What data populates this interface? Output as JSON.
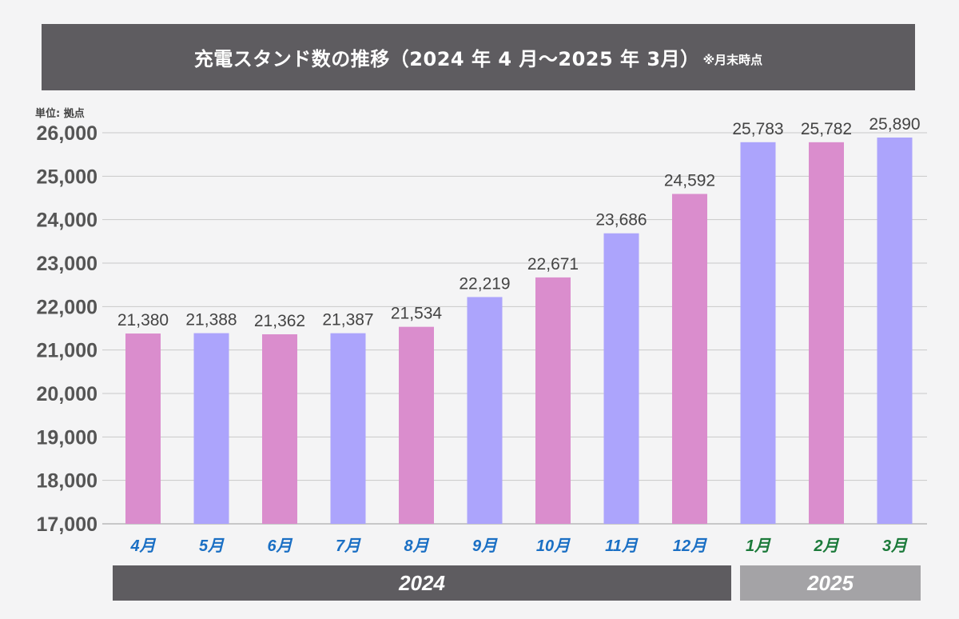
{
  "title": {
    "main": "充電スタンド数の推移（2024 年 4 月〜2025 年 3月）",
    "note": "※月末時点"
  },
  "unit_label": "単位: 拠点",
  "colors": {
    "pink": "#da8dcd",
    "lavender": "#aca4fc",
    "month_blue": "#1a6fc4",
    "month_green": "#1b7a3a",
    "title_bg": "#5e5c60",
    "year_2024_bg": "#5e5c60",
    "year_2025_bg": "#a4a3a6"
  },
  "years": [
    {
      "label": "2024"
    },
    {
      "label": "2025"
    }
  ],
  "chart_data": {
    "type": "bar",
    "categories": [
      "4月",
      "5月",
      "6月",
      "7月",
      "8月",
      "9月",
      "10月",
      "11月",
      "12月",
      "1月",
      "2月",
      "3月"
    ],
    "values": [
      21380,
      21388,
      21362,
      21387,
      21534,
      22219,
      22671,
      23686,
      24592,
      25783,
      25782,
      25890
    ],
    "data_labels": [
      "21,380",
      "21,388",
      "21,362",
      "21,387",
      "21,534",
      "22,219",
      "22,671",
      "23,686",
      "24,592",
      "25,783",
      "25,782",
      "25,890"
    ],
    "bar_colors": [
      "pink",
      "lavender",
      "pink",
      "lavender",
      "pink",
      "lavender",
      "pink",
      "lavender",
      "pink",
      "lavender",
      "pink",
      "lavender"
    ],
    "category_colors": [
      "month_blue",
      "month_blue",
      "month_blue",
      "month_blue",
      "month_blue",
      "month_blue",
      "month_blue",
      "month_blue",
      "month_blue",
      "month_green",
      "month_green",
      "month_green"
    ],
    "ylim": [
      17000,
      26000
    ],
    "yticks": [
      17000,
      18000,
      19000,
      20000,
      21000,
      22000,
      23000,
      24000,
      25000,
      26000
    ],
    "ytick_labels": [
      "17,000",
      "18,000",
      "19,000",
      "20,000",
      "21,000",
      "22,000",
      "23,000",
      "24,000",
      "25,000",
      "26,000"
    ],
    "grid": true,
    "legend": "none"
  }
}
